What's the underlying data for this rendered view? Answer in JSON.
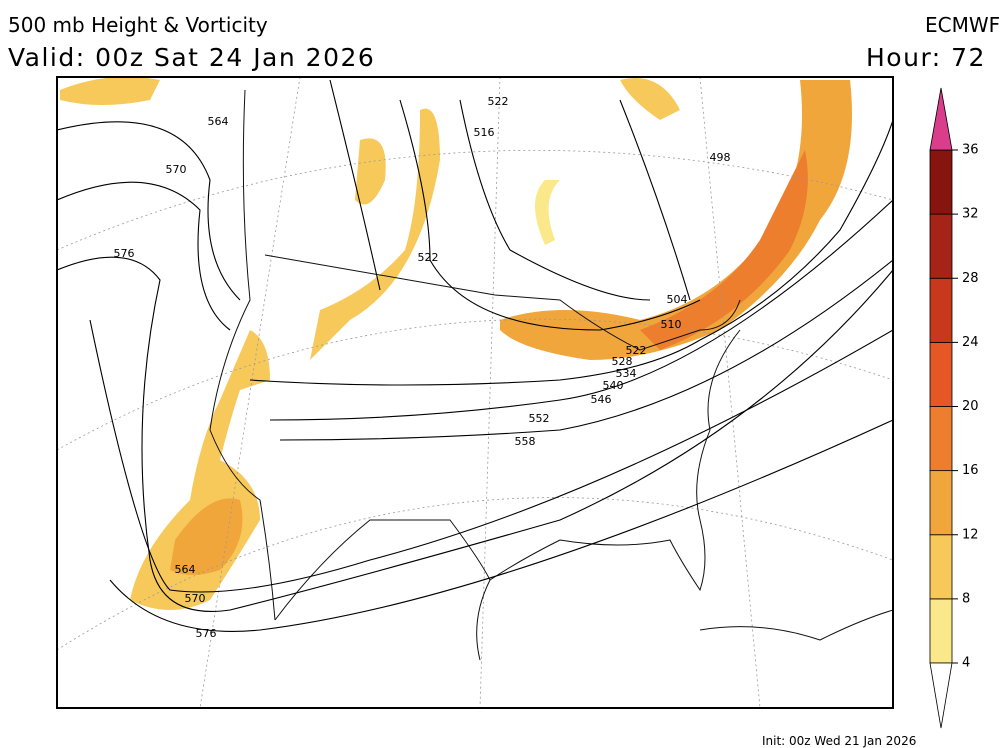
{
  "header": {
    "title": "500 mb Height & Vorticity",
    "valid": "Valid: 00z Sat 24 Jan 2026",
    "model": "ECMWF",
    "hour": "Hour: 72"
  },
  "footer": {
    "init": "Init: 00z Wed 21 Jan 2026"
  },
  "contour_labels": [
    "564",
    "570",
    "576",
    "522",
    "516",
    "498",
    "522",
    "504",
    "510",
    "522",
    "528",
    "534",
    "540",
    "546",
    "552",
    "558",
    "564",
    "570",
    "576"
  ],
  "colorbar": {
    "ticks": [
      4,
      8,
      12,
      16,
      20,
      24,
      28,
      32,
      36
    ],
    "lim": [
      4,
      36
    ],
    "colors": [
      "#fbe88a",
      "#f7c95a",
      "#f1a63c",
      "#ec7e2e",
      "#e55826",
      "#c8381c",
      "#a52317",
      "#86140f"
    ],
    "over_color": "#d93d8c"
  }
}
